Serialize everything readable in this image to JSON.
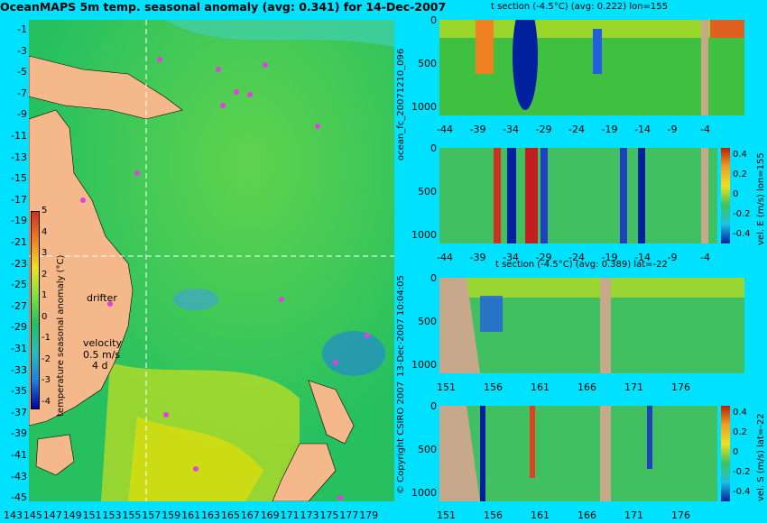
{
  "title": "OceanMAPS 5m temp. seasonal anomaly (avg: 0.341) for 14-Dec-2007",
  "map": {
    "lat_labels": [
      "-1",
      "-3",
      "-5",
      "-7",
      "-9",
      "-11",
      "-13",
      "-15",
      "-17",
      "-19",
      "-21",
      "-23",
      "-25",
      "-27",
      "-29",
      "-31",
      "-33",
      "-35",
      "-37",
      "-39",
      "-41",
      "-43",
      "-45"
    ],
    "lon_labels": [
      "143",
      "145",
      "147",
      "149",
      "151",
      "153",
      "155",
      "157",
      "159",
      "161",
      "163",
      "165",
      "167",
      "169",
      "171",
      "173",
      "175",
      "177",
      "179"
    ],
    "colorbar": {
      "label": "temperature seasonal anomaly (°C)",
      "ticks": [
        "5",
        "4",
        "3",
        "2",
        "1",
        "0",
        "-1",
        "-2",
        "-3",
        "-4"
      ]
    },
    "annotations": {
      "drifter": "drifter",
      "velocity": "velocity",
      "speed": "0.5 m/s",
      "days": "4 d"
    }
  },
  "panels": [
    {
      "title": "t section (-4.5°C) (avg: 0.222) lon=155",
      "yticks": [
        "0",
        "500",
        "1000"
      ],
      "xticks": [
        "-44",
        "-39",
        "-34",
        "-29",
        "-24",
        "-19",
        "-14",
        "-9",
        "-4"
      ]
    },
    {
      "title": "",
      "yticks": [
        "0",
        "500",
        "1000"
      ],
      "xticks": [
        "-44",
        "-39",
        "-34",
        "-29",
        "-24",
        "-19",
        "-14",
        "-9",
        "-4"
      ],
      "colorbar_label": "vel. E (m/s) lon=155",
      "colorbar_ticks": [
        "0.4",
        "0.2",
        "0",
        "-0.2",
        "-0.4"
      ]
    },
    {
      "title": "t section (-4.5°C) (avg: 0.389) lat=-22",
      "yticks": [
        "0",
        "500",
        "1000"
      ],
      "xticks": [
        "151",
        "156",
        "161",
        "166",
        "171",
        "176"
      ]
    },
    {
      "title": "",
      "yticks": [
        "0",
        "500",
        "1000"
      ],
      "xticks": [
        "151",
        "156",
        "161",
        "166",
        "171",
        "176"
      ],
      "colorbar_label": "vel. S (m/s) lat=-22",
      "colorbar_ticks": [
        "0.4",
        "0.2",
        "0",
        "-0.2",
        "-0.4"
      ]
    }
  ],
  "side_texts": {
    "forecast": "ocean_fc_20071210_096",
    "date": "13-Dec-2007 10:04:05",
    "copyright": "© Copyright CSIRO 2007"
  }
}
